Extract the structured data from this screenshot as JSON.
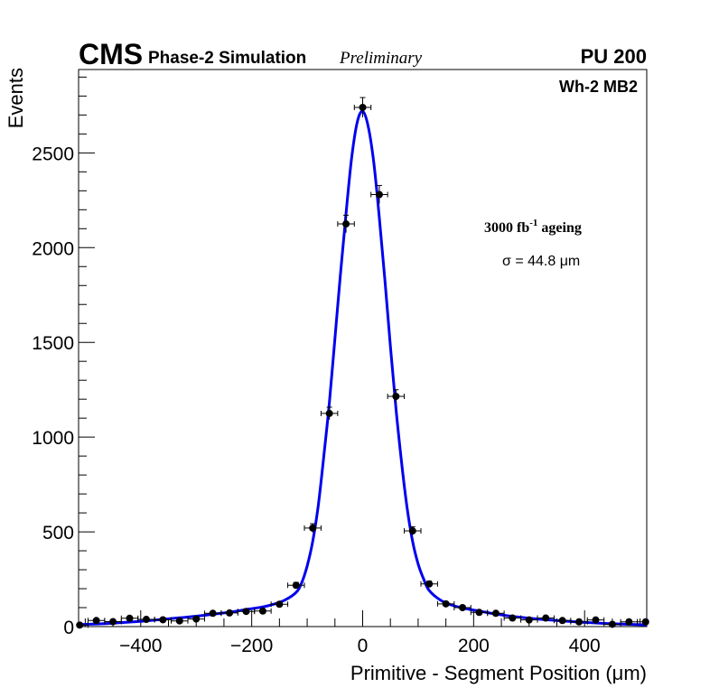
{
  "header": {
    "experiment": "CMS",
    "subtitle": "Phase-2 Simulation",
    "status": "Preliminary",
    "pileup": "PU 200"
  },
  "chart_data": {
    "type": "scatter",
    "title": "Wh-2 MB2",
    "xlabel": "Primitive - Segment Position (μm)",
    "ylabel": "Events",
    "xlim": [
      -512,
      512
    ],
    "ylim": [
      0,
      2940
    ],
    "x_ticks": [
      -400,
      -200,
      0,
      200,
      400
    ],
    "x_tick_labels": [
      "−400",
      "−200",
      "0",
      "200",
      "400"
    ],
    "y_ticks": [
      0,
      500,
      1000,
      1500,
      2000,
      2500
    ],
    "y_tick_labels": [
      "0",
      "500",
      "1000",
      "1500",
      "2000",
      "2500"
    ],
    "annotations": {
      "ageing_main": "3000 fb",
      "ageing_sup": "-1",
      "ageing_rest": " ageing",
      "sigma": "σ = 44.8 μm"
    },
    "bin_half_width": 15,
    "series": [
      {
        "name": "data",
        "kind": "points",
        "x": [
          -510,
          -480,
          -450,
          -420,
          -390,
          -360,
          -330,
          -300,
          -270,
          -240,
          -210,
          -180,
          -150,
          -120,
          -90,
          -60,
          -30,
          0,
          30,
          60,
          90,
          120,
          150,
          180,
          210,
          240,
          270,
          300,
          330,
          360,
          390,
          420,
          450,
          480,
          510
        ],
        "y": [
          8,
          32,
          26,
          44,
          38,
          36,
          30,
          40,
          70,
          72,
          80,
          82,
          118,
          218,
          520,
          1125,
          2125,
          2740,
          2280,
          1215,
          505,
          225,
          120,
          100,
          75,
          70,
          45,
          35,
          45,
          32,
          25,
          35,
          12,
          25,
          25
        ],
        "yerr": [
          5,
          6,
          6,
          7,
          7,
          7,
          6,
          7,
          9,
          9,
          9,
          9,
          11,
          15,
          23,
          33,
          46,
          52,
          48,
          35,
          22,
          15,
          11,
          10,
          9,
          9,
          7,
          6,
          7,
          6,
          5,
          6,
          4,
          5,
          5
        ]
      },
      {
        "name": "fit",
        "kind": "curve",
        "x": [
          -512,
          -480,
          -450,
          -420,
          -390,
          -360,
          -330,
          -300,
          -270,
          -240,
          -210,
          -180,
          -160,
          -140,
          -120,
          -110,
          -100,
          -90,
          -80,
          -70,
          -60,
          -50,
          -40,
          -30,
          -20,
          -10,
          0,
          10,
          20,
          30,
          40,
          50,
          60,
          70,
          80,
          90,
          100,
          110,
          120,
          140,
          160,
          180,
          210,
          240,
          270,
          300,
          330,
          360,
          390,
          420,
          450,
          480,
          512
        ],
        "y": [
          10,
          14,
          18,
          24,
          30,
          38,
          46,
          55,
          65,
          76,
          90,
          104,
          118,
          140,
          180,
          230,
          320,
          450,
          640,
          900,
          1180,
          1520,
          1860,
          2180,
          2470,
          2660,
          2720,
          2640,
          2450,
          2160,
          1830,
          1480,
          1150,
          870,
          630,
          450,
          330,
          250,
          190,
          140,
          114,
          98,
          82,
          66,
          54,
          44,
          36,
          30,
          24,
          19,
          15,
          12,
          9
        ]
      }
    ]
  }
}
